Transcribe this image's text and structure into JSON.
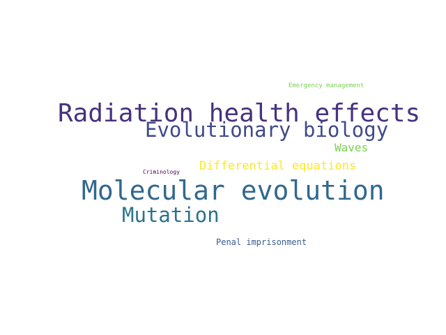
{
  "word_cloud": {
    "words": [
      {
        "id": "emergency",
        "text": "Emergency management",
        "color": "#7ad151"
      },
      {
        "id": "radiation",
        "text": "Radiation health effects",
        "color": "#46327e"
      },
      {
        "id": "evolbio",
        "text": "Evolutionary biology",
        "color": "#3e4a89"
      },
      {
        "id": "waves",
        "text": "Waves",
        "color": "#7ad151"
      },
      {
        "id": "diffeq",
        "text": "Differential equations",
        "color": "#fde725"
      },
      {
        "id": "crimino",
        "text": "Criminology",
        "color": "#440154"
      },
      {
        "id": "molevo",
        "text": "Molecular evolution",
        "color": "#31688e"
      },
      {
        "id": "mutation",
        "text": "Mutation",
        "color": "#2c728e"
      },
      {
        "id": "penal",
        "text": "Penal imprisonment",
        "color": "#365c8d"
      }
    ]
  }
}
